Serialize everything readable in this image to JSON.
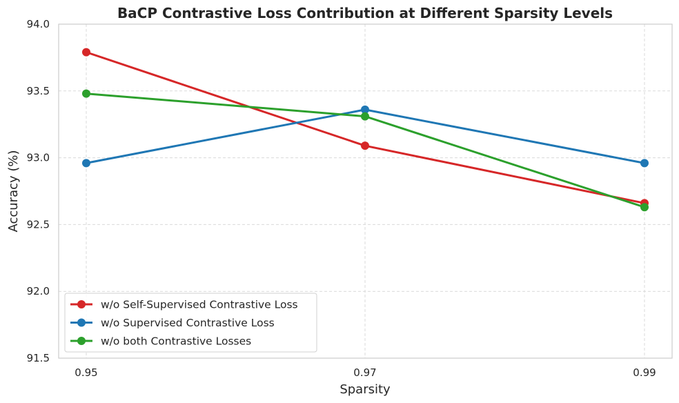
{
  "chart_data": {
    "type": "line",
    "title": "BaCP Contrastive Loss Contribution at Different Sparsity Levels",
    "xlabel": "Sparsity",
    "ylabel": "Accuracy (%)",
    "categories": [
      "0.95",
      "0.97",
      "0.99"
    ],
    "ylim": [
      91.5,
      94.0
    ],
    "yticks": [
      "91.5",
      "92.0",
      "92.5",
      "93.0",
      "93.5",
      "94.0"
    ],
    "grid": true,
    "legend_position": "lower-left",
    "series": [
      {
        "name": "w/o Self-Supervised Contrastive Loss",
        "color": "#d62728",
        "values": [
          93.79,
          93.09,
          92.66
        ]
      },
      {
        "name": "w/o Supervised Contrastive Loss",
        "color": "#1f77b4",
        "values": [
          92.96,
          93.36,
          92.96
        ]
      },
      {
        "name": "w/o both Contrastive Losses",
        "color": "#2ca02c",
        "values": [
          93.48,
          93.31,
          92.63
        ]
      }
    ]
  }
}
